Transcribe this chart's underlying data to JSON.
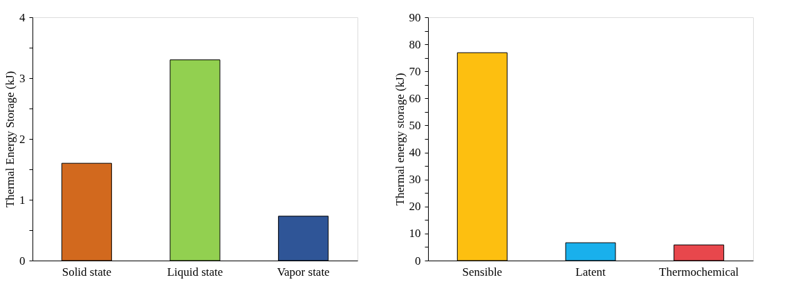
{
  "chart_data": [
    {
      "type": "bar",
      "ylabel": "Thermal Energy Storage (kJ)",
      "categories": [
        "Solid state",
        "Liquid state",
        "Vapor state"
      ],
      "values": [
        1.6,
        3.3,
        0.73
      ],
      "colors": [
        "#d2691e",
        "#92d050",
        "#2f5597"
      ],
      "ylim": [
        0,
        4
      ],
      "yticks": [
        0,
        {
          "value": 0.5,
          "label": null
        },
        1,
        {
          "value": 1.5,
          "label": null
        },
        2,
        {
          "value": 2.5,
          "label": null
        },
        3,
        {
          "value": 3.5,
          "label": null
        },
        4
      ],
      "grid": false
    },
    {
      "type": "bar",
      "ylabel": "Thermal energy storage (kJ)",
      "categories": [
        "Sensible",
        "Latent",
        "Thermochemical"
      ],
      "values": [
        76.9,
        6.6,
        5.8
      ],
      "colors": [
        "#fdbf10",
        "#19b0ec",
        "#e8474c"
      ],
      "ylim": [
        0,
        90
      ],
      "yticks": [
        0,
        {
          "value": 5,
          "label": null
        },
        10,
        {
          "value": 15,
          "label": null
        },
        20,
        {
          "value": 25,
          "label": null
        },
        30,
        {
          "value": 35,
          "label": null
        },
        40,
        {
          "value": 45,
          "label": null
        },
        50,
        {
          "value": 55,
          "label": null
        },
        60,
        {
          "value": 65,
          "label": null
        },
        70,
        {
          "value": 75,
          "label": null
        },
        80,
        {
          "value": 85,
          "label": null
        },
        90
      ],
      "grid": false
    }
  ]
}
